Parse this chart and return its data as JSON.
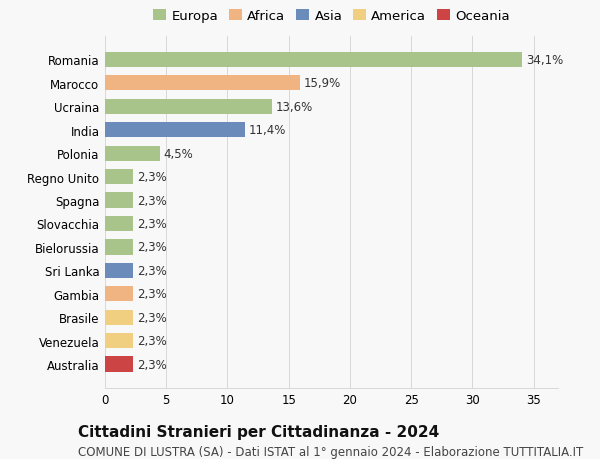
{
  "countries": [
    "Romania",
    "Marocco",
    "Ucraina",
    "India",
    "Polonia",
    "Regno Unito",
    "Spagna",
    "Slovacchia",
    "Bielorussia",
    "Sri Lanka",
    "Gambia",
    "Brasile",
    "Venezuela",
    "Australia"
  ],
  "values": [
    34.1,
    15.9,
    13.6,
    11.4,
    4.5,
    2.3,
    2.3,
    2.3,
    2.3,
    2.3,
    2.3,
    2.3,
    2.3,
    2.3
  ],
  "labels": [
    "34,1%",
    "15,9%",
    "13,6%",
    "11,4%",
    "4,5%",
    "2,3%",
    "2,3%",
    "2,3%",
    "2,3%",
    "2,3%",
    "2,3%",
    "2,3%",
    "2,3%",
    "2,3%"
  ],
  "colors": [
    "#a8c48a",
    "#f0b482",
    "#a8c48a",
    "#6b8cba",
    "#a8c48a",
    "#a8c48a",
    "#a8c48a",
    "#a8c48a",
    "#a8c48a",
    "#6b8cba",
    "#f0b482",
    "#f0d080",
    "#f0d080",
    "#cc4444"
  ],
  "legend_labels": [
    "Europa",
    "Africa",
    "Asia",
    "America",
    "Oceania"
  ],
  "legend_colors": [
    "#a8c48a",
    "#f0b482",
    "#6b8cba",
    "#f0d080",
    "#cc4444"
  ],
  "title": "Cittadini Stranieri per Cittadinanza - 2024",
  "subtitle": "COMUNE DI LUSTRA (SA) - Dati ISTAT al 1° gennaio 2024 - Elaborazione TUTTITALIA.IT",
  "xlim": [
    0,
    37
  ],
  "xticks": [
    0,
    5,
    10,
    15,
    20,
    25,
    30,
    35
  ],
  "background_color": "#f8f8f8",
  "grid_color": "#d8d8d8",
  "bar_height": 0.65,
  "title_fontsize": 11,
  "subtitle_fontsize": 8.5,
  "tick_fontsize": 8.5,
  "label_fontsize": 8.5,
  "legend_fontsize": 9.5
}
